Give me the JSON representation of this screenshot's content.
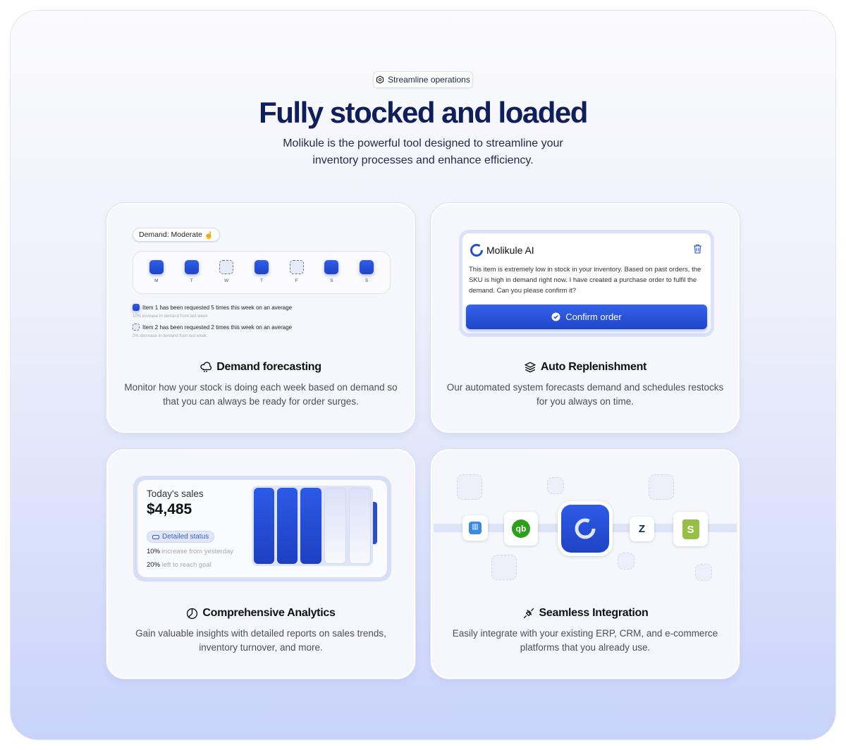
{
  "header": {
    "badge": "Streamline operations",
    "title": "Fully stocked and loaded",
    "subtitle_line1": "Molikule is the powerful tool designed to streamline your",
    "subtitle_line2": "inventory processes and enhance efficiency."
  },
  "demand": {
    "pill": "Demand: Moderate",
    "days": [
      {
        "label": "M",
        "filled": true
      },
      {
        "label": "T",
        "filled": true
      },
      {
        "label": "W",
        "filled": false
      },
      {
        "label": "T",
        "filled": true
      },
      {
        "label": "F",
        "filled": false
      },
      {
        "label": "S",
        "filled": true
      },
      {
        "label": "S",
        "filled": true
      }
    ],
    "item1": "Item 1 has been requested 5 times this week on an average",
    "item1_sub": "10% increase in demand from last week",
    "item2": "Item 2 has been requested 2 times this week on an average",
    "item2_sub": "2% decrease in demand from last week",
    "title": "Demand forecasting",
    "desc": "Monitor how your stock is doing each week based on demand so that you can always be ready for order surges."
  },
  "replenish": {
    "ai_name": "Molikule AI",
    "message": "This item is extremely low in stock in your inventory. Based on past orders, the SKU is high in demand right now. I have created a purchase order to fulfil the demand. Can you please confirm it?",
    "confirm": "Confirm order",
    "title": "Auto Replenishment",
    "desc": "Our automated system forecasts demand and schedules restocks for you always on time."
  },
  "analytics": {
    "label": "Today's sales",
    "amount": "$4,485",
    "status_button": "Detailed status",
    "stat1_value": "10%",
    "stat1_text": " increase from yesterday",
    "stat2_value": "20%",
    "stat2_text": " left to reach goal",
    "bar_fill": {
      "filled": 3,
      "total": 5
    },
    "title": "Comprehensive Analytics",
    "desc": "Gain valuable insights with detailed reports on sales trends, inventory turnover, and more."
  },
  "integration": {
    "apps": [
      "intercom",
      "quickbooks",
      "molikule",
      "zendesk",
      "shopify"
    ],
    "title": "Seamless Integration",
    "desc": "Easily integrate with your existing ERP, CRM, and e-commerce platforms that you already use."
  },
  "colors": {
    "accent": "#2450d8",
    "heading": "#0f1f5c"
  }
}
